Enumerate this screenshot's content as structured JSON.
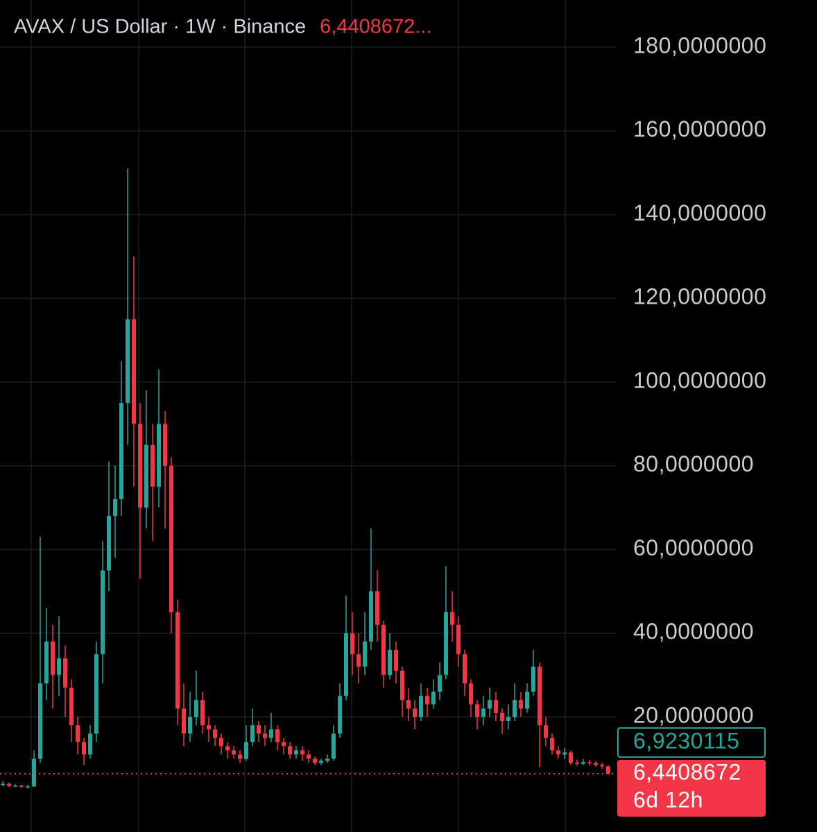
{
  "chart_data": {
    "type": "candlestick",
    "title": "AVAX / US Dollar · 1W · Binance",
    "header_price": "6,4408672...",
    "up_color": "#26a69a",
    "down_color": "#f23645",
    "grid": true,
    "ylim": [
      -7.5,
      191.26
    ],
    "yticks": [
      {
        "value": 20,
        "label": "20,0000000"
      },
      {
        "value": 40,
        "label": "40,0000000"
      },
      {
        "value": 60,
        "label": "60,0000000"
      },
      {
        "value": 80,
        "label": "80,0000000"
      },
      {
        "value": 100,
        "label": "100,0000000"
      },
      {
        "value": 120,
        "label": "120,0000000"
      },
      {
        "value": 140,
        "label": "140,0000000"
      },
      {
        "value": 160,
        "label": "160,0000000"
      },
      {
        "value": 180,
        "label": "180,0000000"
      }
    ],
    "open": [
      3.8,
      4.0,
      3.5,
      3.6,
      3.3,
      3.4,
      10,
      28,
      38,
      30,
      34,
      27,
      18,
      14,
      11,
      16,
      35,
      55,
      68,
      72,
      95,
      115,
      90,
      70,
      85,
      75,
      90,
      80,
      45,
      22,
      16,
      20,
      24,
      18,
      17,
      15,
      13,
      12,
      11,
      10,
      14,
      18,
      16,
      15,
      17,
      14,
      13,
      11,
      12,
      11,
      10,
      9,
      9.5,
      10,
      16,
      25,
      40,
      35,
      32,
      38,
      50,
      42,
      30,
      36,
      31,
      24,
      22,
      20,
      25,
      23,
      26,
      30,
      45,
      42,
      35,
      28,
      23,
      20,
      22,
      24,
      21,
      19,
      20,
      24,
      22,
      26,
      32,
      18,
      15,
      12,
      11,
      11.5,
      9,
      8.8,
      9.2,
      9,
      8.5,
      8.2
    ],
    "high": [
      4.6,
      4.3,
      3.9,
      3.8,
      3.7,
      12,
      63,
      46,
      42,
      44,
      37,
      29,
      20,
      15,
      18,
      38,
      62,
      81,
      80,
      105,
      151,
      130,
      95,
      98,
      90,
      103,
      93,
      82,
      48,
      28,
      26,
      31,
      26,
      20,
      18,
      16,
      14,
      13,
      12,
      18,
      22,
      19,
      18,
      21,
      18,
      15,
      14,
      13,
      13,
      12,
      10.5,
      10,
      11,
      18,
      28,
      49,
      45,
      40,
      45,
      65,
      55,
      43,
      40,
      38,
      32,
      27,
      24,
      28,
      27,
      29,
      33,
      56,
      50,
      44,
      36,
      29,
      24,
      25,
      27,
      26,
      22,
      23,
      28,
      26,
      28,
      36,
      33,
      20,
      16,
      13,
      12.5,
      12,
      9.8,
      9.9,
      9.8,
      9.4,
      9,
      8.4
    ],
    "low": [
      3.4,
      3.2,
      3.2,
      3.0,
      2.9,
      3.2,
      9,
      24,
      22,
      25,
      20,
      14,
      11,
      8.5,
      10,
      14,
      28,
      50,
      58,
      68,
      85,
      75,
      53,
      65,
      62,
      70,
      65,
      40,
      18,
      13,
      14,
      18,
      16,
      14,
      13,
      11,
      10,
      10,
      9,
      9.5,
      13,
      14,
      13,
      14,
      12,
      11,
      10,
      10,
      9.5,
      9,
      8.5,
      8.5,
      9,
      9.5,
      15,
      24,
      30,
      28,
      30,
      36,
      38,
      27,
      29,
      28,
      20,
      19,
      17,
      19,
      20,
      22,
      24,
      29,
      38,
      32,
      25,
      20,
      17,
      18,
      20,
      19,
      16,
      17,
      19,
      20,
      21,
      25,
      8,
      13,
      11,
      10,
      10,
      8.5,
      8.3,
      8.5,
      8.4,
      8,
      7.6,
      6.2
    ],
    "close": [
      4.0,
      3.5,
      3.6,
      3.3,
      3.4,
      10,
      28,
      38,
      30,
      34,
      27,
      18,
      14,
      11,
      16,
      35,
      55,
      68,
      72,
      95,
      115,
      90,
      70,
      85,
      75,
      90,
      80,
      45,
      22,
      16,
      20,
      24,
      18,
      17,
      15,
      13,
      12,
      11,
      10,
      14,
      18,
      16,
      15,
      17,
      14,
      13,
      11,
      12,
      11,
      10,
      9,
      9.5,
      10,
      16,
      25,
      40,
      35,
      32,
      38,
      50,
      42,
      30,
      36,
      31,
      24,
      22,
      20,
      25,
      23,
      26,
      30,
      45,
      42,
      35,
      28,
      23,
      20,
      22,
      24,
      21,
      19,
      20,
      24,
      22,
      26,
      32,
      18,
      15,
      12,
      11,
      11.5,
      9,
      8.8,
      9.2,
      9,
      8.5,
      8.2,
      6.4408672
    ],
    "price_markers": [
      {
        "value": 6.4408672,
        "label": "6,4408672",
        "sublabel": "6d 12h",
        "color": "#f23645",
        "style": "filled"
      },
      {
        "value": 6.9230115,
        "label": "6,9230115",
        "color": "#26a69a",
        "style": "outline"
      }
    ]
  }
}
